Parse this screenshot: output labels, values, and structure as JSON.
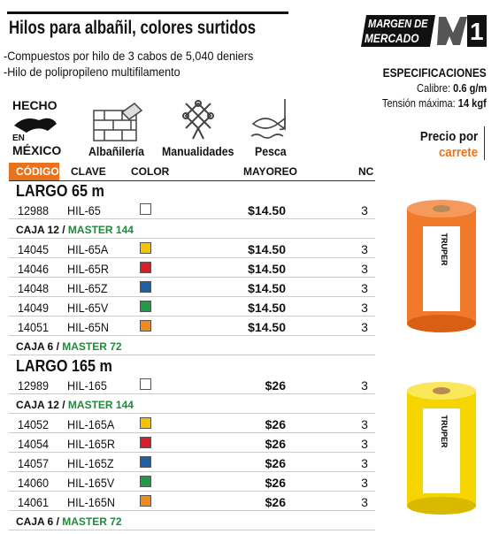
{
  "header": {
    "title": "Hilos para albañil, colores surtidos",
    "badge": {
      "line1": "MARGEN DE",
      "line2": "MERCADO",
      "number": "1"
    }
  },
  "features": [
    "Compuestos por hilo de 3 cabos de 5,040 deniers",
    "Hilo de polipropileno multifilamento"
  ],
  "origin": {
    "line1": "HECHO",
    "line2": "EN",
    "line3": "MÉXICO"
  },
  "uses": [
    "Albañilería",
    "Manualidades",
    "Pesca"
  ],
  "specs": {
    "title": "ESPECIFICACIONES",
    "rows": [
      {
        "label": "Calibre:",
        "value": "0.6 g/m"
      },
      {
        "label": "Tensión máxima:",
        "value": "14 kgf"
      }
    ]
  },
  "price_note": {
    "line1": "Precio por",
    "line2": "carrete"
  },
  "brand": "TRUPER",
  "table": {
    "columns": [
      "CÓDIGO",
      "CLAVE",
      "COLOR",
      "MAYOREO",
      "NC"
    ],
    "sections": [
      {
        "title": "LARGO 65 m",
        "main": {
          "code": "12988",
          "key": "HIL-65",
          "color": "#ffffff",
          "price": "$14.50",
          "nc": 3
        },
        "box1": {
          "label": "CAJA 12 /",
          "master": "MASTER 144"
        },
        "rows": [
          {
            "code": "14045",
            "key": "HIL-65A",
            "color": "#f5c400",
            "price": "$14.50",
            "nc": 3
          },
          {
            "code": "14046",
            "key": "HIL-65R",
            "color": "#d81e26",
            "price": "$14.50",
            "nc": 3
          },
          {
            "code": "14048",
            "key": "HIL-65Z",
            "color": "#1f5fa8",
            "price": "$14.50",
            "nc": 3
          },
          {
            "code": "14049",
            "key": "HIL-65V",
            "color": "#1f9a48",
            "price": "$14.50",
            "nc": 3
          },
          {
            "code": "14051",
            "key": "HIL-65N",
            "color": "#f08a1c",
            "price": "$14.50",
            "nc": 3
          }
        ],
        "box2": {
          "label": "CAJA 6 /",
          "master": "MASTER 72"
        }
      },
      {
        "title": "LARGO 165 m",
        "main": {
          "code": "12989",
          "key": "HIL-165",
          "color": "#ffffff",
          "price": "$26",
          "nc": 3
        },
        "box1": {
          "label": "CAJA 12 /",
          "master": "MASTER 144"
        },
        "rows": [
          {
            "code": "14052",
            "key": "HIL-165A",
            "color": "#f5c400",
            "price": "$26",
            "nc": 3
          },
          {
            "code": "14054",
            "key": "HIL-165R",
            "color": "#d81e26",
            "price": "$26",
            "nc": 3
          },
          {
            "code": "14057",
            "key": "HIL-165Z",
            "color": "#1f5fa8",
            "price": "$26",
            "nc": 3
          },
          {
            "code": "14060",
            "key": "HIL-165V",
            "color": "#1f9a48",
            "price": "$26",
            "nc": 3
          },
          {
            "code": "14061",
            "key": "HIL-165N",
            "color": "#f08a1c",
            "price": "$26",
            "nc": 3
          }
        ],
        "box2": {
          "label": "CAJA 6 /",
          "master": "MASTER 72"
        }
      }
    ]
  }
}
